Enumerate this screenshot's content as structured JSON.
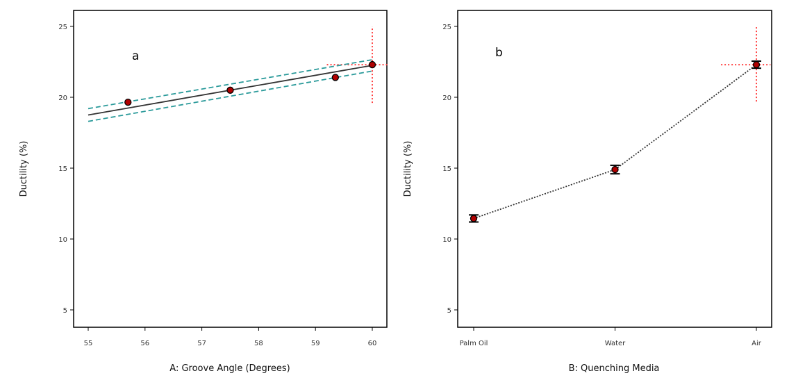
{
  "chart_data": [
    {
      "type": "line",
      "panel_label": "a",
      "xlabel": "A: Groove Angle (Degrees)",
      "ylabel": "Ductility (%)",
      "xlim": [
        55,
        60
      ],
      "ylim": [
        3,
        26
      ],
      "x_ticks": [
        55,
        56,
        57,
        58,
        59,
        60
      ],
      "y_ticks": [
        5,
        10,
        15,
        20,
        25
      ],
      "grid": false,
      "colors": {
        "fit": "#333333",
        "ci": "#2a9a9a",
        "point": "#b00000",
        "crosshair": "#ff4040"
      },
      "series": [
        {
          "style": "points",
          "x": [
            55.7,
            57.5,
            59.35,
            60.0
          ],
          "y": [
            19.65,
            20.5,
            21.4,
            22.3
          ]
        },
        {
          "style": "fit-line",
          "x": [
            55.0,
            60.0
          ],
          "y": [
            18.75,
            22.25
          ]
        },
        {
          "style": "ci-upper",
          "x": [
            55.0,
            60.0
          ],
          "y": [
            19.2,
            22.65
          ]
        },
        {
          "style": "ci-lower",
          "x": [
            55.0,
            60.0
          ],
          "y": [
            18.3,
            21.85
          ]
        }
      ],
      "crosshair": {
        "x": 60.0,
        "y": 22.3,
        "v_range": [
          19.6,
          25.0
        ],
        "h_range": [
          59.2,
          60.3
        ]
      }
    },
    {
      "type": "line",
      "panel_label": "b",
      "xlabel": "B: Quenching Media",
      "ylabel": "Ductility (%)",
      "categories": [
        "Palm Oil",
        "Water",
        "Air"
      ],
      "ylim": [
        3,
        26
      ],
      "y_ticks": [
        5,
        10,
        15,
        20,
        25
      ],
      "grid": false,
      "colors": {
        "line": "#333333",
        "point": "#b00000",
        "crosshair": "#ff4040"
      },
      "series": [
        {
          "style": "dotted-points",
          "values": [
            11.45,
            14.9,
            22.3
          ],
          "error": [
            0.25,
            0.3,
            0.25
          ]
        }
      ],
      "crosshair": {
        "category_index": 2,
        "y": 22.3,
        "v_range": [
          19.7,
          25.0
        ],
        "h_range": [
          1.75,
          2.1
        ]
      }
    }
  ]
}
